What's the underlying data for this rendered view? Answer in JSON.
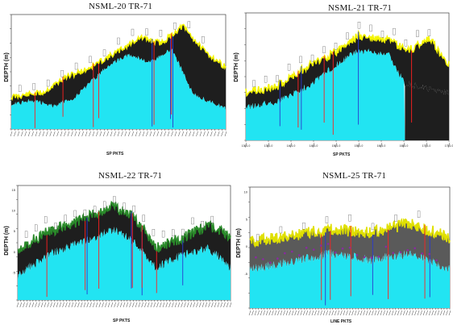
{
  "chart_data": [
    {
      "type": "area",
      "title": "NSML-20 TR-71",
      "ylabel": "DEPTH (m)",
      "xlabel": "SP PKTS",
      "layers": [
        "bathymetry",
        "sediment",
        "basement"
      ],
      "colors": {
        "water": "#22e4f2",
        "sediment": "#1e1e1e",
        "topEdge": "#f5f500",
        "marker": "#ff2020"
      }
    },
    {
      "type": "area",
      "title": "NSML-21 TR-71",
      "ylabel": "DEPTH (m)",
      "xlabel": "SP PKTS",
      "x_tick_labels": [
        "1301.0",
        "1351.0",
        "1401.0",
        "1451.0",
        "1501.0",
        "1551.0",
        "1601.0",
        "1651.0",
        "1701.0",
        "1751.0"
      ],
      "colors": {
        "water": "#22e4f2",
        "sediment": "#1e1e1e",
        "topEdge": "#f5f500",
        "marker": "#ff2020"
      }
    },
    {
      "type": "area",
      "title": "NSML-22 TR-71",
      "ylabel": "DEPTH (m)",
      "xlabel": "SP PKTS",
      "y_tick_labels": [
        "15",
        "10",
        "5",
        "0",
        "-5"
      ],
      "colors": {
        "water": "#22e4f2",
        "sediment": "#1e1e1e",
        "topEdge": "#2a8a2a",
        "marker": "#ff2020"
      }
    },
    {
      "type": "area",
      "title": "NSML-25 TR-71",
      "ylabel": "DEPTH (m)",
      "xlabel": "LINE PKTS",
      "y_tick_labels": [
        "10",
        "5",
        "0",
        "-5"
      ],
      "colors": {
        "water": "#22e4f2",
        "sediment": "#5a5a5a",
        "topEdge": "#e0e000",
        "marker": "#ff2020",
        "points": "#8a2aa0"
      }
    }
  ]
}
